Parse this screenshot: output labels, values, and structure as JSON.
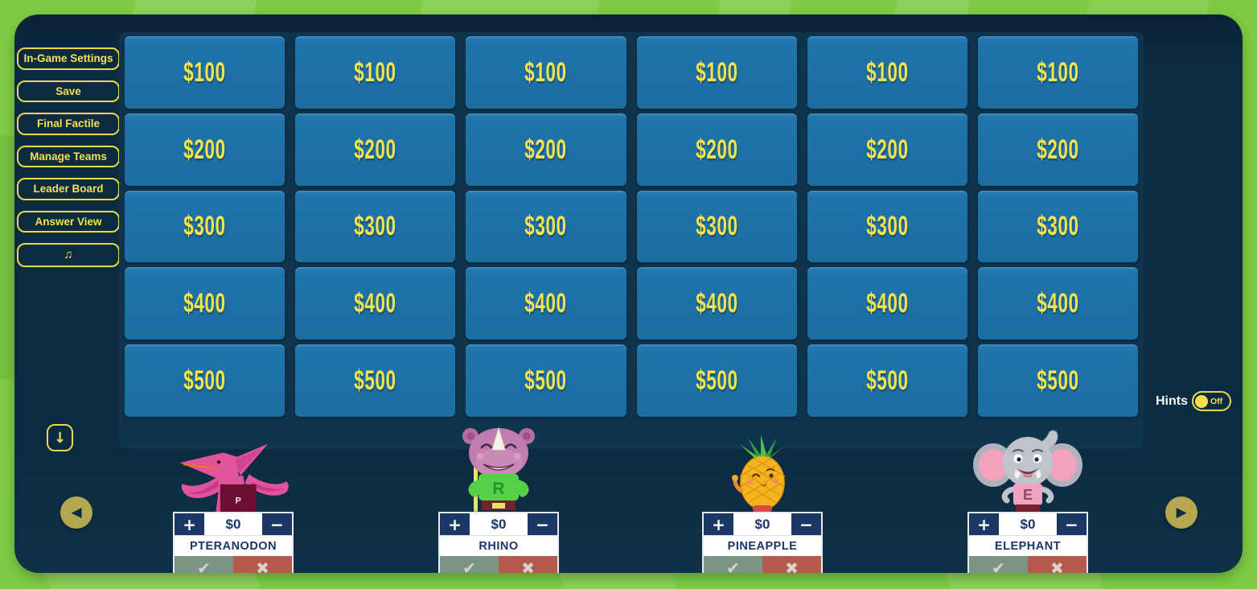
{
  "colors": {
    "background_green": "#7ecb44",
    "panel_navy": "#0d2b40",
    "board_navy": "#0f344d",
    "tile_blue": "#1e74a9",
    "accent_yellow": "#f2e24f",
    "card_navy": "#1b3763",
    "correct_green": "#7a9682",
    "incorrect_red": "#b65a4e",
    "arrow_olive": "#b3a74f"
  },
  "sidebar": {
    "buttons": [
      {
        "label": "In-Game Settings"
      },
      {
        "label": "Save"
      },
      {
        "label": "Final Factile"
      },
      {
        "label": "Manage Teams"
      },
      {
        "label": "Leader Board"
      },
      {
        "label": "Answer View"
      }
    ],
    "music_button": "♫"
  },
  "board": {
    "columns": 6,
    "row_values": [
      "$100",
      "$200",
      "$300",
      "$400",
      "$500"
    ]
  },
  "hints": {
    "label": "Hints",
    "state": "Off"
  },
  "controls": {
    "scroll_down": "↓",
    "prev": "◀",
    "next": "▶"
  },
  "icons": {
    "plus": "+",
    "minus": "−",
    "correct": "✔",
    "incorrect": "✖"
  },
  "teams": [
    {
      "name": "PTERANODON",
      "score": "$0",
      "avatar_letter": "P"
    },
    {
      "name": "RHINO",
      "score": "$0",
      "avatar_letter": "R"
    },
    {
      "name": "PINEAPPLE",
      "score": "$0",
      "avatar_letter": ""
    },
    {
      "name": "ELEPHANT",
      "score": "$0",
      "avatar_letter": "E"
    }
  ]
}
